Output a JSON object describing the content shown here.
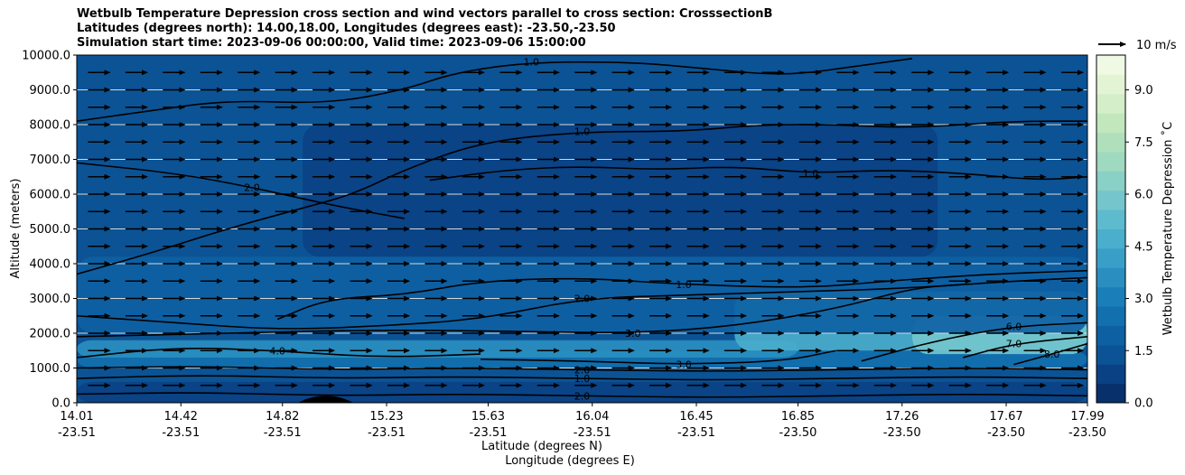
{
  "title_lines": [
    "Wetbulb Temperature Depression cross section and wind vectors parallel to cross section: CrosssectionB",
    "Latitudes (degrees north): 14.00,18.00, Longitudes (degrees east): -23.50,-23.50",
    "Simulation start time: 2023-09-06 00:00:00, Valid time: 2023-09-06 15:00:00"
  ],
  "chart_data": {
    "type": "heatmap",
    "variable": "Wetbulb Temperature Depression",
    "ylabel": "Altitude (meters)",
    "xlabel_lines": [
      "Latitude (degrees N)",
      "Longitude (degrees E)"
    ],
    "ylim": [
      0,
      10000
    ],
    "y_ticks": [
      "0.0",
      "1000.0",
      "2000.0",
      "3000.0",
      "4000.0",
      "5000.0",
      "6000.0",
      "7000.0",
      "8000.0",
      "9000.0",
      "10000.0"
    ],
    "x_ticks": [
      {
        "lat": "14.01",
        "lon": "-23.51"
      },
      {
        "lat": "14.42",
        "lon": "-23.51"
      },
      {
        "lat": "14.82",
        "lon": "-23.51"
      },
      {
        "lat": "15.23",
        "lon": "-23.51"
      },
      {
        "lat": "15.63",
        "lon": "-23.51"
      },
      {
        "lat": "16.04",
        "lon": "-23.51"
      },
      {
        "lat": "16.45",
        "lon": "-23.51"
      },
      {
        "lat": "16.85",
        "lon": "-23.50"
      },
      {
        "lat": "17.26",
        "lon": "-23.50"
      },
      {
        "lat": "17.67",
        "lon": "-23.50"
      },
      {
        "lat": "17.99",
        "lon": "-23.50"
      }
    ],
    "xlim": [
      14.01,
      17.99
    ],
    "grid": "horizontal",
    "colorbar": {
      "label": "Wetbulb Temperature Depression $^\\circ$C",
      "label_display": "Wetbulb Temperature Depression ˚C",
      "range": [
        0.0,
        10.0
      ],
      "tick_values": [
        0.0,
        1.5,
        3.0,
        4.5,
        6.0,
        7.5,
        9.0
      ],
      "tick_labels": [
        "0.0",
        "1.5",
        "3.0",
        "4.5",
        "6.0",
        "7.5",
        "9.0"
      ],
      "colors": [
        "#08306b",
        "#0a4184",
        "#0b5394",
        "#0d61a3",
        "#1270ae",
        "#1a7fb8",
        "#2a8fc0",
        "#3a9fc8",
        "#4aaecc",
        "#5ebbce",
        "#74c6cc",
        "#89d0c6",
        "#9fd9bf",
        "#b0e0bb",
        "#c2e7bd",
        "#d3eec8",
        "#e2f4d4",
        "#eff9e4"
      ]
    },
    "field_regions": [
      {
        "level": 1.0,
        "lat_range": [
          14.01,
          17.99
        ],
        "alt_range": [
          0,
          600
        ]
      },
      {
        "level": 1.5,
        "lat_range": [
          14.01,
          17.99
        ],
        "alt_range": [
          600,
          1000
        ]
      },
      {
        "level": 2.5,
        "lat_range": [
          14.01,
          17.99
        ],
        "alt_range": [
          1000,
          1500
        ]
      },
      {
        "level": 3.5,
        "lat_range": [
          14.01,
          16.85
        ],
        "alt_range": [
          1300,
          1800
        ]
      },
      {
        "level": 4.5,
        "lat_range": [
          16.6,
          17.99
        ],
        "alt_range": [
          1500,
          3200
        ]
      },
      {
        "level": 6.0,
        "lat_range": [
          17.3,
          17.99
        ],
        "alt_range": [
          1400,
          2500
        ]
      },
      {
        "level": 2.0,
        "lat_range": [
          14.01,
          17.99
        ],
        "alt_range": [
          2000,
          4200
        ]
      },
      {
        "level": 0.7,
        "lat_range": [
          14.9,
          17.4
        ],
        "alt_range": [
          4200,
          8000
        ]
      },
      {
        "level": 1.2,
        "lat_range": [
          14.01,
          17.99
        ],
        "alt_range": [
          8000,
          10000
        ]
      }
    ],
    "contours": [
      {
        "level": "1.0",
        "path": [
          [
            14.01,
            8100
          ],
          [
            14.3,
            8400
          ],
          [
            14.6,
            8700
          ],
          [
            15.0,
            8600
          ],
          [
            15.3,
            9000
          ],
          [
            15.5,
            9500
          ],
          [
            15.8,
            9800
          ],
          [
            16.2,
            9800
          ],
          [
            16.5,
            9600
          ],
          [
            16.8,
            9400
          ],
          [
            17.1,
            9700
          ],
          [
            17.3,
            9900
          ]
        ]
      },
      {
        "level": "1.0",
        "path": [
          [
            14.01,
            3700
          ],
          [
            14.3,
            4300
          ],
          [
            14.6,
            5000
          ],
          [
            14.9,
            5600
          ],
          [
            15.1,
            6000
          ],
          [
            15.3,
            6700
          ],
          [
            15.6,
            7500
          ],
          [
            16.0,
            7800
          ],
          [
            16.4,
            7800
          ],
          [
            16.7,
            8000
          ],
          [
            17.0,
            8000
          ],
          [
            17.3,
            7900
          ],
          [
            17.7,
            8100
          ],
          [
            17.99,
            8100
          ]
        ]
      },
      {
        "level": "1.0",
        "path": [
          [
            15.4,
            6400
          ],
          [
            15.7,
            6700
          ],
          [
            16.0,
            6800
          ],
          [
            16.3,
            6700
          ],
          [
            16.6,
            6800
          ],
          [
            16.9,
            6600
          ],
          [
            17.2,
            6700
          ],
          [
            17.5,
            6600
          ],
          [
            17.8,
            6400
          ],
          [
            17.99,
            6500
          ]
        ]
      },
      {
        "level": "1.0",
        "path": [
          [
            14.8,
            2400
          ],
          [
            15.0,
            3000
          ],
          [
            15.3,
            3100
          ],
          [
            15.6,
            3500
          ],
          [
            16.0,
            3600
          ],
          [
            16.4,
            3400
          ],
          [
            16.9,
            3300
          ],
          [
            17.2,
            3500
          ],
          [
            17.6,
            3700
          ],
          [
            17.99,
            3800
          ]
        ]
      },
      {
        "level": "2.0",
        "path": [
          [
            14.01,
            2500
          ],
          [
            14.4,
            2300
          ],
          [
            14.8,
            2100
          ],
          [
            15.2,
            2200
          ],
          [
            15.6,
            2400
          ],
          [
            16.0,
            3000
          ],
          [
            16.4,
            3100
          ],
          [
            16.9,
            3200
          ],
          [
            17.3,
            3300
          ],
          [
            17.7,
            3500
          ],
          [
            17.99,
            3600
          ]
        ]
      },
      {
        "level": "2.0",
        "path": [
          [
            14.01,
            6900
          ],
          [
            14.4,
            6600
          ],
          [
            14.7,
            6200
          ],
          [
            15.0,
            5700
          ],
          [
            15.3,
            5300
          ]
        ]
      },
      {
        "level": "3.0",
        "path": [
          [
            14.01,
            1900
          ],
          [
            14.6,
            2000
          ],
          [
            15.2,
            2100
          ],
          [
            15.8,
            2050
          ],
          [
            16.2,
            2000
          ],
          [
            16.6,
            2200
          ],
          [
            17.0,
            2700
          ],
          [
            17.3,
            3300
          ],
          [
            17.5,
            3400
          ]
        ]
      },
      {
        "level": "3.0",
        "path": [
          [
            15.6,
            1250
          ],
          [
            16.0,
            1200
          ],
          [
            16.4,
            1100
          ],
          [
            16.8,
            1200
          ],
          [
            17.0,
            1500
          ]
        ]
      },
      {
        "level": "4.0",
        "path": [
          [
            14.01,
            1300
          ],
          [
            14.4,
            1600
          ],
          [
            14.8,
            1500
          ],
          [
            15.2,
            1300
          ],
          [
            15.6,
            1400
          ]
        ]
      },
      {
        "level": "6.0",
        "path": [
          [
            17.1,
            1200
          ],
          [
            17.4,
            1800
          ],
          [
            17.7,
            2200
          ],
          [
            17.99,
            2300
          ]
        ]
      },
      {
        "level": "7.0",
        "path": [
          [
            17.5,
            1300
          ],
          [
            17.7,
            1700
          ],
          [
            17.99,
            1900
          ]
        ]
      },
      {
        "level": "8.0",
        "path": [
          [
            17.7,
            1100
          ],
          [
            17.85,
            1400
          ],
          [
            17.99,
            1700
          ]
        ]
      },
      {
        "level": "2.0",
        "path": [
          [
            14.01,
            1000
          ],
          [
            14.5,
            1050
          ],
          [
            15.0,
            950
          ],
          [
            15.5,
            1000
          ],
          [
            16.0,
            950
          ],
          [
            16.5,
            900
          ],
          [
            17.0,
            950
          ],
          [
            17.5,
            1000
          ],
          [
            17.99,
            950
          ]
        ]
      },
      {
        "level": "1.0",
        "path": [
          [
            14.01,
            700
          ],
          [
            14.5,
            800
          ],
          [
            15.0,
            700
          ],
          [
            15.5,
            750
          ],
          [
            16.0,
            700
          ],
          [
            16.5,
            650
          ],
          [
            17.0,
            700
          ],
          [
            17.5,
            750
          ],
          [
            17.99,
            700
          ]
        ]
      },
      {
        "level": "2.0",
        "path": [
          [
            14.01,
            250
          ],
          [
            14.5,
            300
          ],
          [
            15.0,
            200
          ],
          [
            15.5,
            250
          ],
          [
            16.0,
            200
          ],
          [
            16.5,
            150
          ],
          [
            17.0,
            200
          ],
          [
            17.5,
            250
          ],
          [
            17.99,
            200
          ]
        ]
      }
    ],
    "wind": {
      "direction": "parallel to cross section, toward increasing latitude",
      "altitude_levels": [
        500,
        1000,
        1500,
        2000,
        2500,
        3000,
        3500,
        4000,
        4500,
        5000,
        5500,
        6000,
        6500,
        7000,
        7500,
        8000,
        8500,
        9000,
        9500
      ],
      "columns": 27,
      "typical_speed_ms": 8,
      "reference_vector": {
        "speed": 10,
        "label": "10 m/s"
      }
    },
    "terrain": {
      "lat_range": [
        14.88,
        15.1
      ],
      "peak_alt": 200
    }
  }
}
